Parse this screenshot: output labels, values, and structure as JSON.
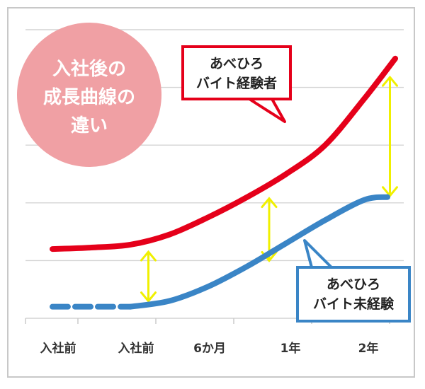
{
  "chart_data": {
    "type": "line",
    "title_lines": [
      "入社後の",
      "成長曲線の",
      "違い"
    ],
    "categories": [
      "入社前",
      "入社前",
      "6か月",
      "1年",
      "2年"
    ],
    "ylim": [
      0,
      10
    ],
    "grid": true,
    "series": [
      {
        "name": "あべひろ バイト経験者",
        "label_lines": [
          "あべひろ",
          "バイト経験者"
        ],
        "color": "#e5001a",
        "x": [
          0,
          0.5,
          1,
          1.5,
          2,
          2.5,
          3,
          3.5,
          4,
          4.4
        ],
        "values": [
          2.4,
          2.45,
          2.55,
          2.9,
          3.5,
          4.2,
          5.0,
          6.0,
          7.6,
          9.0
        ]
      },
      {
        "name": "あべひろ バイト未経験",
        "label_lines": [
          "あべひろ",
          "バイト未経験"
        ],
        "color": "#3a85c6",
        "dashed_until": 1,
        "x": [
          0,
          0.5,
          1,
          1.5,
          2,
          2.5,
          3,
          3.5,
          4,
          4.3
        ],
        "values": [
          0.4,
          0.4,
          0.4,
          0.6,
          1.1,
          1.8,
          2.6,
          3.4,
          4.1,
          4.2
        ]
      }
    ],
    "gap_arrows": [
      {
        "x": 1.05,
        "y_bottom": 0.45,
        "y_top": 2.45,
        "color": "#f0f000"
      },
      {
        "x": 2.6,
        "y_bottom": 1.85,
        "y_top": 4.3,
        "color": "#f0f000"
      },
      {
        "x": 4.15,
        "y_bottom": 4.1,
        "y_top": 8.5,
        "color": "#f0f000"
      }
    ],
    "badge_color": "#f0a0a4"
  }
}
